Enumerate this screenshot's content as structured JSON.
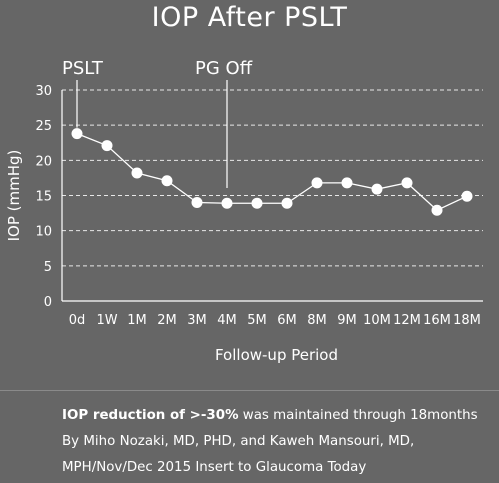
{
  "chart_data": {
    "type": "line",
    "title": "IOP After PSLT",
    "xlabel": "Follow-up Period",
    "ylabel": "IOP (mmHg)",
    "ylim": [
      0,
      30
    ],
    "yticks": [
      0,
      5,
      10,
      15,
      20,
      25,
      30
    ],
    "grid": "horizontal dashed",
    "categories": [
      "0d",
      "1W",
      "1M",
      "2M",
      "3M",
      "4M",
      "5M",
      "6M",
      "8M",
      "9M",
      "10M",
      "12M",
      "16M",
      "18M"
    ],
    "series": [
      {
        "values": [
          23.8,
          22.1,
          18.2,
          17.1,
          14.0,
          13.9,
          13.9,
          13.9,
          16.8,
          16.8,
          15.9,
          16.8,
          12.9,
          14.9
        ]
      }
    ],
    "annotations": [
      {
        "text": "PSLT",
        "category": "0d"
      },
      {
        "text": "PG Off",
        "category": "4M"
      }
    ],
    "colors": {
      "background": "#666666",
      "line": "#ffffff",
      "grid": "#ffffff"
    }
  },
  "caption": {
    "highlight": "IOP reduction of >-30%",
    "line1_rest": " was maintained through 18months",
    "line2": "By Miho Nozaki, MD, PHD, and Kaweh Mansouri, MD,",
    "line3": "MPH/Nov/Dec 2015 Insert to Glaucoma Today"
  }
}
